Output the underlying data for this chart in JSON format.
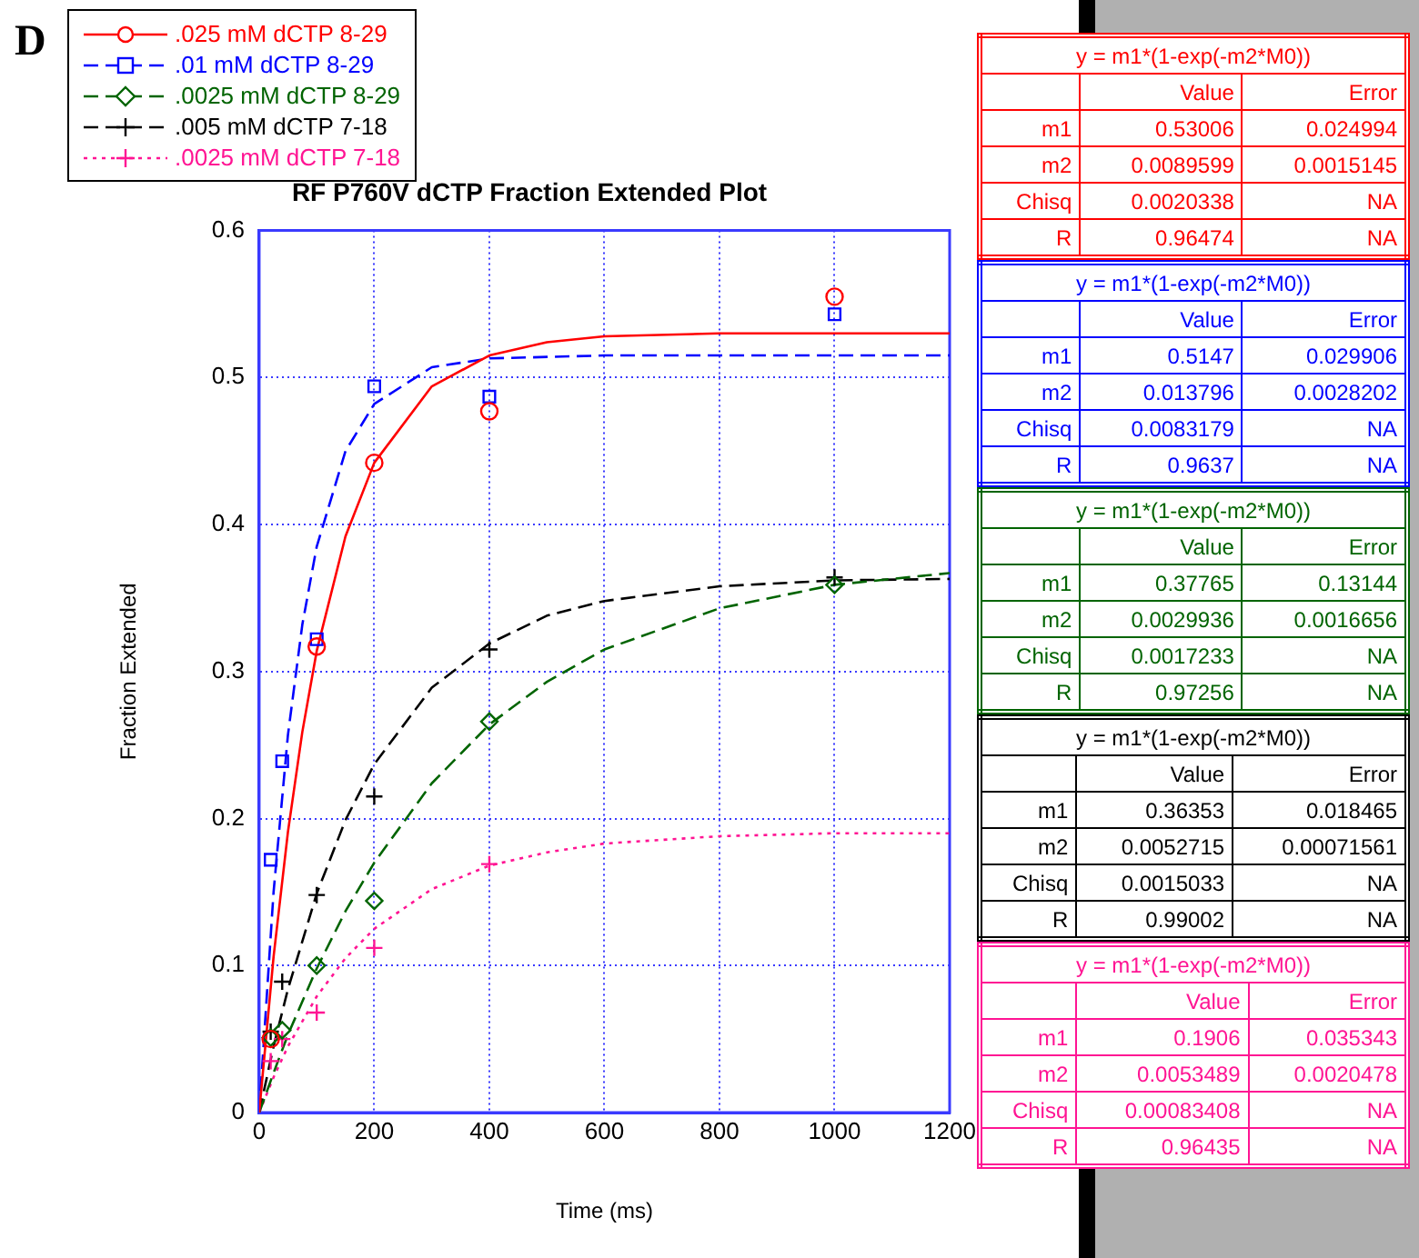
{
  "chart_data": {
    "type": "scatter",
    "title": "RF P760V dCTP Fraction Extended Plot",
    "xlabel": "Time (ms)",
    "ylabel": "Fraction Extended",
    "xlim": [
      0,
      1200
    ],
    "xticks": [
      0,
      200,
      400,
      600,
      800,
      1000,
      1200
    ],
    "ylim": [
      0,
      0.6
    ],
    "yticks": [
      0,
      0.1,
      0.2,
      0.3,
      0.4,
      0.5,
      0.6
    ],
    "grid": true,
    "legend": "top left",
    "series": [
      {
        "name": ".025 mM dCTP 8-29",
        "color": "#ff0000",
        "marker": "circle",
        "x": [
          20,
          40,
          100,
          200,
          400,
          1000
        ],
        "values": [
          0.05,
          null,
          0.317,
          0.442,
          0.477,
          0.555
        ]
      },
      {
        "name": ".01 mM dCTP 8-29",
        "color": "#0000ff",
        "marker": "square",
        "x": [
          20,
          40,
          100,
          200,
          400,
          1000
        ],
        "values": [
          0.172,
          0.239,
          0.322,
          0.494,
          0.487,
          0.543
        ]
      },
      {
        "name": ".0025 mM dCTP 8-29",
        "color": "#006400",
        "marker": "diamond",
        "x": [
          20,
          40,
          100,
          200,
          400,
          1000
        ],
        "values": [
          0.051,
          0.056,
          0.1,
          0.144,
          0.266,
          0.359
        ]
      },
      {
        "name": ".005 mM dCTP 7-18",
        "color": "#000000",
        "marker": "cross",
        "x": [
          20,
          40,
          100,
          200,
          400,
          1000
        ],
        "values": [
          0.055,
          0.089,
          0.148,
          0.215,
          0.315,
          0.364
        ]
      },
      {
        "name": ".0025 mM dCTP 7-18",
        "color": "#ff1493",
        "marker": "cross",
        "x": [
          20,
          40,
          100,
          200,
          400
        ],
        "values": [
          0.035,
          0.05,
          0.068,
          0.112,
          0.169
        ]
      },
      {
        "type": "line",
        "color": "#ff0000",
        "line_style": "solid",
        "x": [
          0,
          25,
          50,
          75,
          100,
          150,
          200,
          300,
          400,
          500,
          600,
          800,
          1000,
          1200
        ],
        "values": [
          0,
          0.106,
          0.191,
          0.259,
          0.314,
          0.392,
          0.442,
          0.494,
          0.515,
          0.524,
          0.528,
          0.53,
          0.53,
          0.53
        ]
      },
      {
        "type": "line",
        "color": "#0000ff",
        "line_style": "dashed",
        "x": [
          0,
          25,
          50,
          75,
          100,
          150,
          200,
          300,
          400,
          600,
          800,
          1000,
          1200
        ],
        "values": [
          0,
          0.15,
          0.257,
          0.332,
          0.385,
          0.45,
          0.482,
          0.507,
          0.513,
          0.515,
          0.515,
          0.515,
          0.515
        ]
      },
      {
        "type": "line",
        "color": "#006400",
        "line_style": "dashed",
        "x": [
          0,
          25,
          50,
          100,
          150,
          200,
          300,
          400,
          500,
          600,
          800,
          1000,
          1200
        ],
        "values": [
          0,
          0.027,
          0.053,
          0.098,
          0.137,
          0.17,
          0.224,
          0.264,
          0.293,
          0.315,
          0.343,
          0.359,
          0.367
        ]
      },
      {
        "type": "line",
        "color": "#000000",
        "line_style": "dashed",
        "x": [
          0,
          25,
          50,
          100,
          150,
          200,
          300,
          400,
          500,
          600,
          800,
          1000,
          1200
        ],
        "values": [
          0,
          0.045,
          0.084,
          0.149,
          0.199,
          0.237,
          0.289,
          0.319,
          0.338,
          0.348,
          0.358,
          0.362,
          0.363
        ]
      },
      {
        "type": "line",
        "color": "#ff1493",
        "line_style": "dotted",
        "x": [
          0,
          25,
          50,
          100,
          150,
          200,
          300,
          400,
          500,
          600,
          800,
          1000,
          1200
        ],
        "values": [
          0,
          0.024,
          0.045,
          0.079,
          0.105,
          0.125,
          0.152,
          0.168,
          0.177,
          0.183,
          0.188,
          0.19,
          0.19
        ]
      }
    ],
    "annotations": [
      "D",
      "y = m1*(1-exp(-m2*M0))",
      "Value",
      "Error",
      "m1",
      "0.53006",
      "0.024994",
      "m2",
      "0.0089599",
      "0.0015145",
      "Chisq",
      "0.0020338",
      "NA",
      "R",
      "0.96474",
      "NA",
      "y = m1*(1-exp(-m2*M0))",
      "Value",
      "Error",
      "m1",
      "0.5147",
      "0.029906",
      "m2",
      "0.013796",
      "0.0028202",
      "Chisq",
      "0.0083179",
      "NA",
      "R",
      "0.9637",
      "NA",
      "y = m1*(1-exp(-m2*M0))",
      "Value",
      "Error",
      "m1",
      "0.37765",
      "0.13144",
      "m2",
      "0.0029936",
      "0.0016656",
      "Chisq",
      "0.0017233",
      "NA",
      "R",
      "0.97256",
      "NA",
      "y = m1*(1-exp(-m2*M0))",
      "Value",
      "Error",
      "m1",
      "0.36353",
      "0.018465",
      "m2",
      "0.0052715",
      "0.00071561",
      "Chisq",
      "0.0015033",
      "NA",
      "R",
      "0.99002",
      "NA",
      "y = m1*(1-exp(-m2*M0))",
      "Value",
      "Error",
      "m1",
      "0.1906",
      "0.035343",
      "m2",
      "0.0053489",
      "0.0020478",
      "Chisq",
      "0.00083408",
      "NA",
      "R",
      "0.96435",
      "NA"
    ]
  }
}
